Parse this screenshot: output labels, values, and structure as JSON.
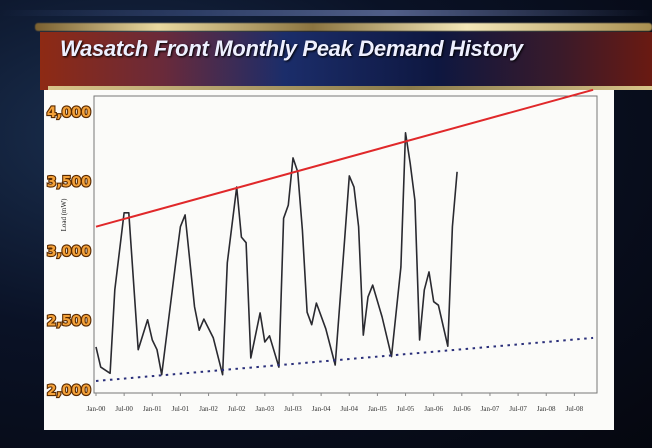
{
  "slide": {
    "title": "Wasatch Front Monthly Peak Demand History"
  },
  "colors": {
    "series": "#2a2a30",
    "upper_trend": "#e0282a",
    "lower_trend": "#2a2f7a",
    "tick_labels": "#f4a23a"
  },
  "chart_data": {
    "type": "line",
    "title": "Wasatch Front Monthly Peak Demand History",
    "xlabel": "",
    "ylabel": "Load (mW)",
    "ylim": [
      2000,
      4000
    ],
    "yticks": [
      "2,000",
      "2,500",
      "3,000",
      "3,500",
      "4,000"
    ],
    "ytick_values": [
      2000,
      2500,
      3000,
      3500,
      4000
    ],
    "xlim": [
      "2000-01",
      "2008-07"
    ],
    "xticks": [
      "Jan-00",
      "Jul-00",
      "Jan-01",
      "Jul-01",
      "Jan-02",
      "Jul-02",
      "Jan-03",
      "Jul-03",
      "Jan-04",
      "Jul-04",
      "Jan-05",
      "Jul-05",
      "Jan-06",
      "Jul-06",
      "Jan-07",
      "Jul-07",
      "Jan-08",
      "Jul-08"
    ],
    "grid": false,
    "series": [
      {
        "style": "solid",
        "x": [
          "2000-01",
          "2000-02",
          "2000-04",
          "2000-05",
          "2000-07",
          "2000-08",
          "2000-10",
          "2000-12",
          "2001-01",
          "2001-02",
          "2001-03",
          "2001-06",
          "2001-07",
          "2001-08",
          "2001-10",
          "2001-11",
          "2001-12",
          "2002-02",
          "2002-04",
          "2002-05",
          "2002-07",
          "2002-08",
          "2002-09",
          "2002-10",
          "2002-12",
          "2003-01",
          "2003-02",
          "2003-04",
          "2003-05",
          "2003-06",
          "2003-07",
          "2003-08",
          "2003-09",
          "2003-10",
          "2003-11",
          "2003-12",
          "2004-02",
          "2004-04",
          "2004-06",
          "2004-07",
          "2004-08",
          "2004-09",
          "2004-10",
          "2004-11",
          "2004-12",
          "2005-02",
          "2005-04",
          "2005-06",
          "2005-07",
          "2005-08",
          "2005-09",
          "2005-10",
          "2005-11",
          "2005-12",
          "2006-01",
          "2006-02",
          "2006-04",
          "2006-05",
          "2006-06"
        ],
        "y": [
          2310,
          2165,
          2120,
          2720,
          3275,
          3275,
          2290,
          2505,
          2360,
          2290,
          2110,
          2915,
          3175,
          3260,
          2600,
          2430,
          2510,
          2375,
          2110,
          2915,
          3460,
          3100,
          3060,
          2230,
          2555,
          2345,
          2390,
          2165,
          3235,
          3330,
          3670,
          3570,
          3150,
          2560,
          2470,
          2625,
          2440,
          2180,
          3080,
          3540,
          3460,
          3175,
          2395,
          2670,
          2755,
          2525,
          2240,
          2885,
          3850,
          3630,
          3365,
          2360,
          2720,
          2850,
          2635,
          2610,
          2315,
          3175,
          3570
        ]
      },
      {
        "style": "trend-upper",
        "x": [
          "2000-01",
          "2008-11"
        ],
        "y": [
          3175,
          4160
        ]
      },
      {
        "style": "trend-lower-dotted",
        "x": [
          "2000-01",
          "2008-11"
        ],
        "y": [
          2065,
          2375
        ]
      }
    ]
  }
}
